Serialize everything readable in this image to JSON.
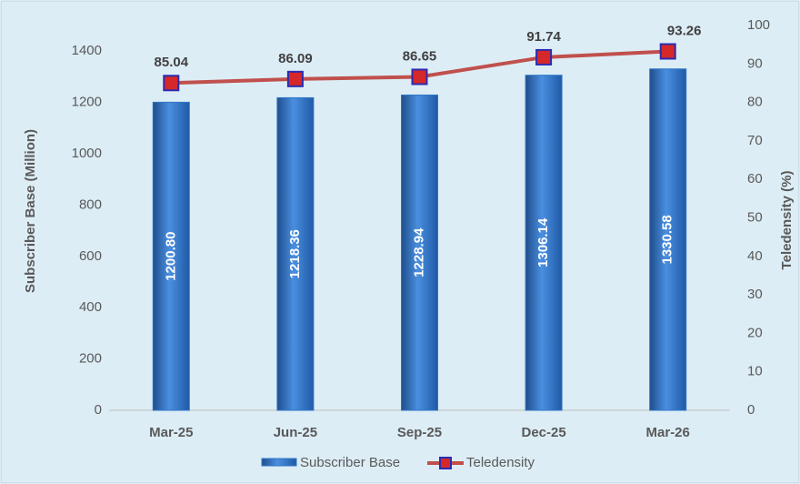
{
  "chart_data": {
    "type": "bar",
    "categories": [
      "Mar-25",
      "Jun-25",
      "Sep-25",
      "Dec-25",
      "Mar-26"
    ],
    "y_label": "Subscriber Base (Million)",
    "y2_label": "Teledensity  (%)",
    "ylim": [
      0,
      1500
    ],
    "yticks": [
      0,
      200,
      400,
      600,
      800,
      1000,
      1200,
      1400
    ],
    "y2lim": [
      0,
      100
    ],
    "y2ticks": [
      0,
      10,
      20,
      30,
      40,
      50,
      60,
      70,
      80,
      90,
      100
    ],
    "series": [
      {
        "name": "Subscriber Base",
        "type": "bar",
        "color": "#2e75c8",
        "values": [
          1200.8,
          1218.36,
          1228.94,
          1306.14,
          1330.58
        ],
        "value_labels": [
          "1200.80",
          "1218.36",
          "1228.94",
          "1306.14",
          "1330.58"
        ]
      },
      {
        "name": "Teledensity",
        "type": "line",
        "axis": "y2",
        "color": "#c0504d",
        "values": [
          85.04,
          86.09,
          86.65,
          91.74,
          93.26
        ]
      }
    ]
  }
}
